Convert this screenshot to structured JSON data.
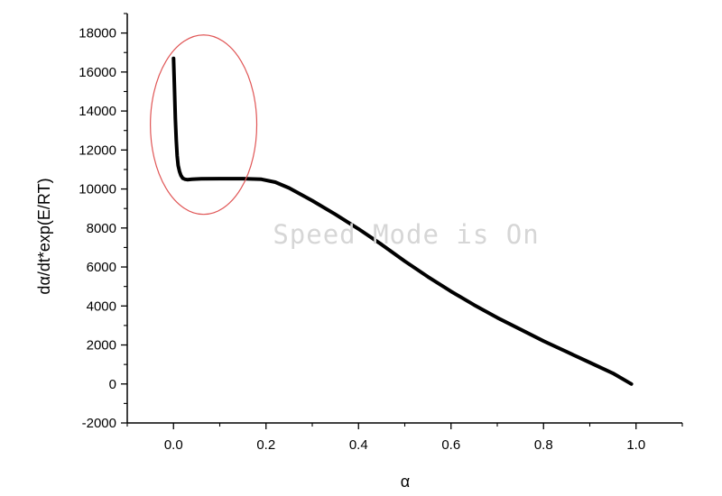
{
  "chart_data": {
    "type": "line",
    "title": "",
    "xlabel": "α",
    "ylabel": "dα/dt*exp(E/RT)",
    "xlim": [
      -0.1,
      1.1
    ],
    "ylim": [
      -2000,
      19000
    ],
    "x_ticks": [
      0.0,
      0.2,
      0.4,
      0.6,
      0.8,
      1.0
    ],
    "x_tick_labels": [
      "0.0",
      "0.2",
      "0.4",
      "0.6",
      "0.8",
      "1.0"
    ],
    "y_ticks": [
      -2000,
      0,
      2000,
      4000,
      6000,
      8000,
      10000,
      12000,
      14000,
      16000,
      18000
    ],
    "y_tick_labels": [
      "-2000",
      "0",
      "2000",
      "4000",
      "6000",
      "8000",
      "10000",
      "12000",
      "14000",
      "16000",
      "18000"
    ],
    "grid": false,
    "series": [
      {
        "color": "#000000",
        "x": [
          0.0,
          0.002,
          0.004,
          0.006,
          0.008,
          0.01,
          0.013,
          0.016,
          0.02,
          0.025,
          0.03,
          0.04,
          0.06,
          0.1,
          0.15,
          0.19,
          0.22,
          0.25,
          0.3,
          0.35,
          0.4,
          0.45,
          0.5,
          0.55,
          0.6,
          0.65,
          0.7,
          0.75,
          0.8,
          0.85,
          0.9,
          0.95,
          0.99
        ],
        "y": [
          16700,
          15200,
          13600,
          12500,
          11700,
          11200,
          10900,
          10700,
          10550,
          10500,
          10480,
          10500,
          10520,
          10530,
          10530,
          10500,
          10350,
          10050,
          9400,
          8700,
          7950,
          7150,
          6300,
          5500,
          4750,
          4050,
          3400,
          2800,
          2200,
          1650,
          1100,
          550,
          0
        ]
      }
    ],
    "annotations": [
      {
        "type": "ellipse",
        "color": "#e05555",
        "center": [
          0.065,
          13300
        ],
        "radius_x": 0.115,
        "radius_y": 4600
      }
    ]
  },
  "watermark": {
    "text": "Speed Mode is On",
    "color": "#d6d6d6"
  }
}
